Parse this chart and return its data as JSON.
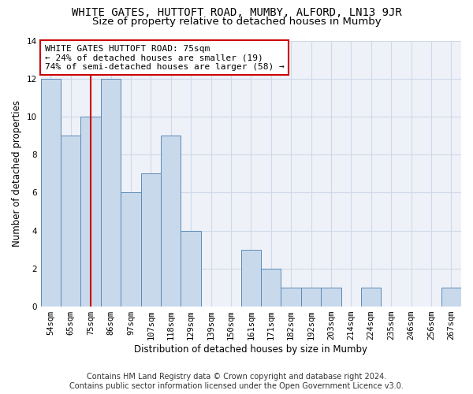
{
  "title": "WHITE GATES, HUTTOFT ROAD, MUMBY, ALFORD, LN13 9JR",
  "subtitle": "Size of property relative to detached houses in Mumby",
  "xlabel": "Distribution of detached houses by size in Mumby",
  "ylabel": "Number of detached properties",
  "categories": [
    "54sqm",
    "65sqm",
    "75sqm",
    "86sqm",
    "97sqm",
    "107sqm",
    "118sqm",
    "129sqm",
    "139sqm",
    "150sqm",
    "161sqm",
    "171sqm",
    "182sqm",
    "192sqm",
    "203sqm",
    "214sqm",
    "224sqm",
    "235sqm",
    "246sqm",
    "256sqm",
    "267sqm"
  ],
  "values": [
    12,
    9,
    10,
    12,
    6,
    7,
    9,
    4,
    0,
    0,
    3,
    2,
    1,
    1,
    1,
    0,
    1,
    0,
    0,
    0,
    1
  ],
  "bar_color": "#c9d9ec",
  "bar_edge_color": "#5b8ab5",
  "highlight_index": 2,
  "highlight_line_color": "#cc0000",
  "ylim": [
    0,
    14
  ],
  "yticks": [
    0,
    2,
    4,
    6,
    8,
    10,
    12,
    14
  ],
  "annotation_lines": [
    "WHITE GATES HUTTOFT ROAD: 75sqm",
    "← 24% of detached houses are smaller (19)",
    "74% of semi-detached houses are larger (58) →"
  ],
  "annotation_box_color": "#ffffff",
  "annotation_box_edge_color": "#cc0000",
  "grid_color": "#d0d8e8",
  "bg_color": "#eef2f8",
  "footer_line1": "Contains HM Land Registry data © Crown copyright and database right 2024.",
  "footer_line2": "Contains public sector information licensed under the Open Government Licence v3.0.",
  "title_fontsize": 10,
  "subtitle_fontsize": 9.5,
  "ylabel_fontsize": 8.5,
  "xlabel_fontsize": 8.5,
  "tick_fontsize": 7.5,
  "annotation_fontsize": 8,
  "footer_fontsize": 7
}
